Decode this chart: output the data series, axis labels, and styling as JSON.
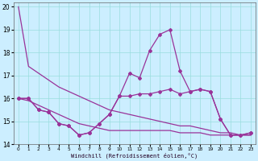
{
  "xlabel": "Windchill (Refroidissement éolien,°C)",
  "bg_color": "#cceeff",
  "grid_color": "#99dddd",
  "line_color": "#993399",
  "x_values": [
    0,
    1,
    2,
    3,
    4,
    5,
    6,
    7,
    8,
    9,
    10,
    11,
    12,
    13,
    14,
    15,
    16,
    17,
    18,
    19,
    20,
    21,
    22,
    23
  ],
  "lineA_nomark": [
    20.0,
    17.4,
    17.1,
    16.8,
    16.5,
    16.3,
    16.1,
    15.9,
    15.7,
    15.5,
    15.4,
    15.3,
    15.2,
    15.1,
    15.0,
    14.9,
    14.8,
    14.8,
    14.7,
    14.6,
    14.5,
    14.5,
    14.4,
    14.4
  ],
  "lineB_nomark": [
    16.0,
    15.9,
    15.7,
    15.5,
    15.3,
    15.1,
    14.9,
    14.8,
    14.7,
    14.6,
    14.6,
    14.6,
    14.6,
    14.6,
    14.6,
    14.6,
    14.5,
    14.5,
    14.5,
    14.4,
    14.4,
    14.4,
    14.4,
    14.4
  ],
  "lineC_mark": [
    16.0,
    16.0,
    15.5,
    15.4,
    14.9,
    14.8,
    14.4,
    14.5,
    14.9,
    15.3,
    16.1,
    17.1,
    16.9,
    18.1,
    18.8,
    19.0,
    17.2,
    16.3,
    16.4,
    16.3,
    15.1,
    14.4,
    14.4,
    14.5
  ],
  "lineD_mark": [
    16.0,
    16.0,
    15.5,
    15.4,
    14.9,
    14.8,
    14.4,
    14.5,
    14.9,
    15.3,
    16.1,
    16.1,
    16.2,
    16.2,
    16.3,
    16.4,
    16.2,
    16.3,
    16.4,
    16.3,
    15.1,
    14.4,
    14.4,
    14.5
  ],
  "ylim": [
    14.0,
    20.2
  ],
  "yticks": [
    14,
    15,
    16,
    17,
    18,
    19,
    20
  ],
  "xlim": [
    -0.5,
    23.5
  ]
}
